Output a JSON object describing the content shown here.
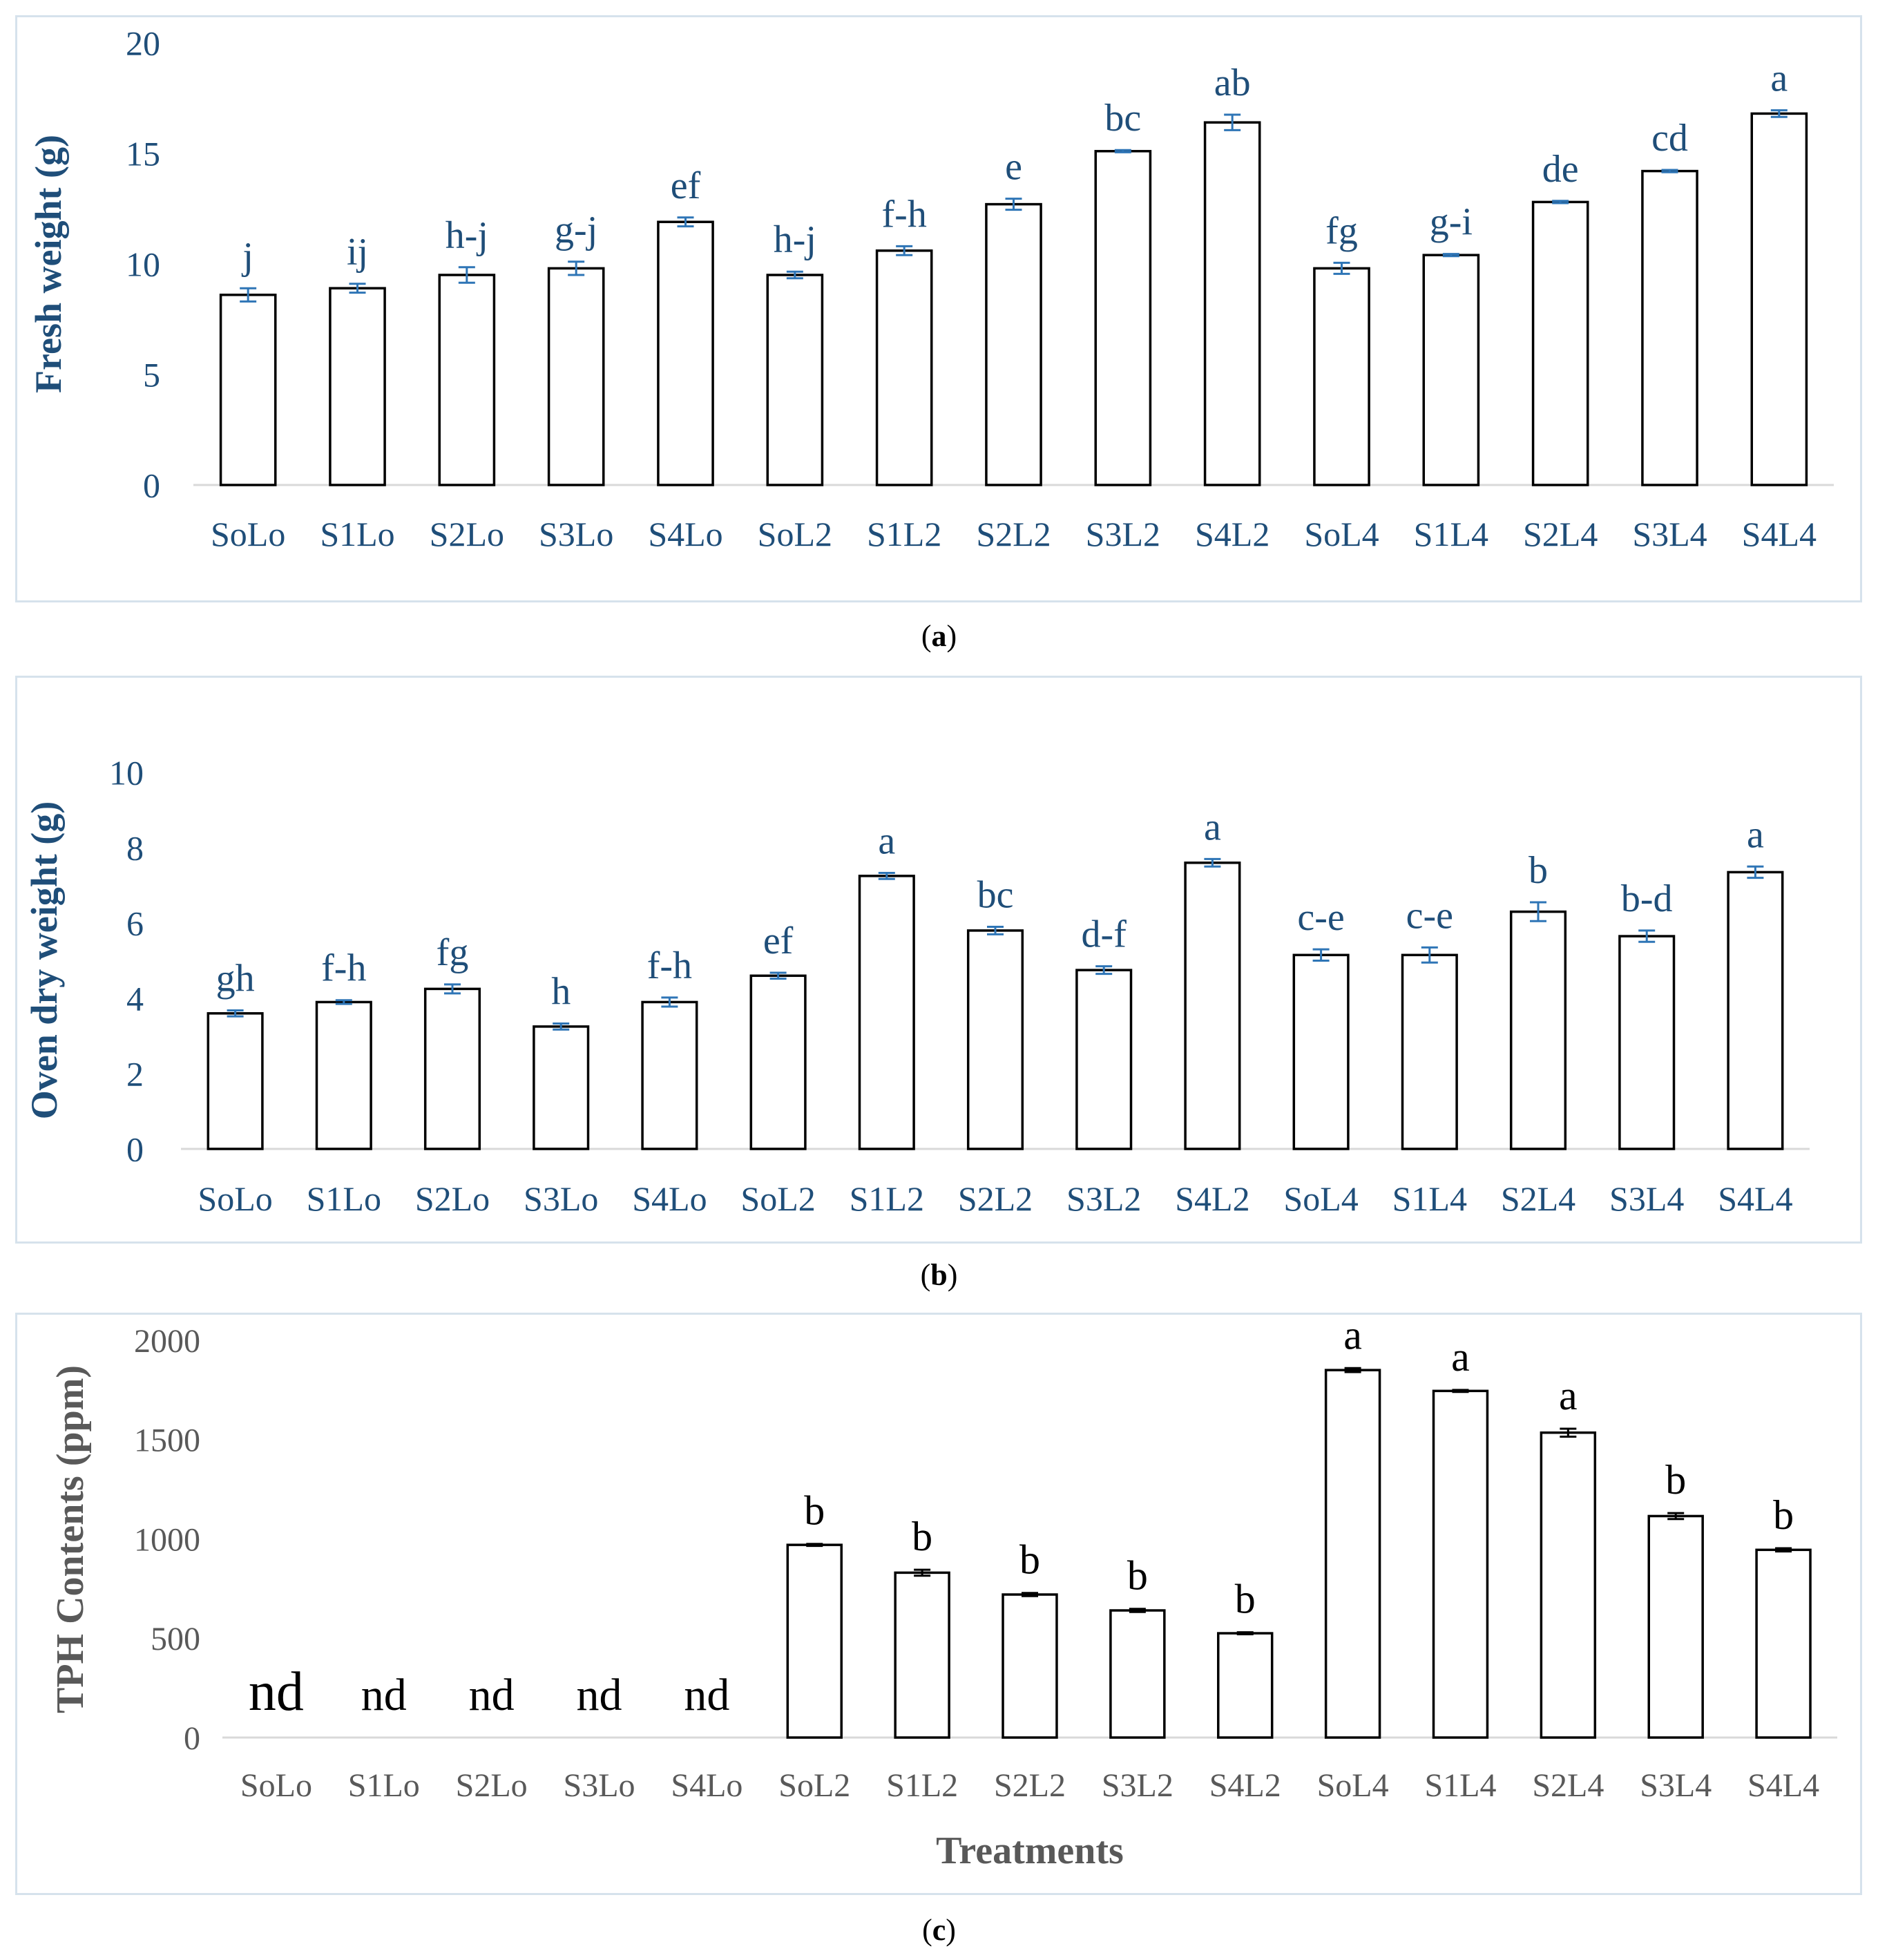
{
  "chart_data": [
    {
      "type": "bar",
      "panel": "a",
      "caption": "(a)",
      "categories": [
        "SoLo",
        "S1Lo",
        "S2Lo",
        "S3Lo",
        "S4Lo",
        "SoL2",
        "S1L2",
        "S2L2",
        "S3L2",
        "S4L2",
        "SoL4",
        "S1L4",
        "S2L4",
        "S3L4",
        "S4L4"
      ],
      "values": [
        8.6,
        8.9,
        9.5,
        9.8,
        11.9,
        9.5,
        10.6,
        12.7,
        15.1,
        16.4,
        9.8,
        10.4,
        12.8,
        14.2,
        16.8
      ],
      "errors": [
        0.3,
        0.2,
        0.35,
        0.3,
        0.2,
        0.15,
        0.2,
        0.25,
        0.05,
        0.35,
        0.25,
        0.05,
        0.05,
        0.05,
        0.15
      ],
      "letters": [
        "j",
        "ij",
        "h-j",
        "g-j",
        "ef",
        "h-j",
        "f-h",
        "e",
        "bc",
        "ab",
        "fg",
        "g-i",
        "de",
        "cd",
        "a"
      ],
      "xlabel": "",
      "ylabel": "Fresh weight (g)",
      "ylim": [
        0,
        20
      ],
      "yticks": [
        0,
        5,
        10,
        15,
        20
      ],
      "grid": false,
      "colors": {
        "axis_text": "#1f4e79",
        "letter_text": "#1f4e79",
        "error_bar": "#2e75b6",
        "bar_fill": "#ffffff",
        "bar_stroke": "#000000"
      }
    },
    {
      "type": "bar",
      "panel": "b",
      "caption": "(b)",
      "categories": [
        "SoLo",
        "S1Lo",
        "S2Lo",
        "S3Lo",
        "S4Lo",
        "SoL2",
        "S1L2",
        "S2L2",
        "S3L2",
        "S4L2",
        "SoL4",
        "S1L4",
        "S2L4",
        "S3L4",
        "S4L4"
      ],
      "values": [
        3.6,
        3.9,
        4.25,
        3.25,
        3.9,
        4.6,
        7.25,
        5.8,
        4.75,
        7.6,
        5.15,
        5.15,
        6.3,
        5.65,
        7.35
      ],
      "errors": [
        0.08,
        0.05,
        0.12,
        0.08,
        0.12,
        0.08,
        0.08,
        0.1,
        0.1,
        0.1,
        0.15,
        0.2,
        0.25,
        0.15,
        0.15
      ],
      "letters": [
        "gh",
        "f-h",
        "fg",
        "h",
        "f-h",
        "ef",
        "a",
        "bc",
        "d-f",
        "a",
        "c-e",
        "c-e",
        "b",
        "b-d",
        "a"
      ],
      "xlabel": "",
      "ylabel": "Oven dry weight (g)",
      "ylim": [
        0,
        10
      ],
      "yticks": [
        0,
        2,
        4,
        6,
        8,
        10
      ],
      "grid": false,
      "colors": {
        "axis_text": "#1f4e79",
        "letter_text": "#1f4e79",
        "error_bar": "#2e75b6",
        "bar_fill": "#ffffff",
        "bar_stroke": "#000000"
      }
    },
    {
      "type": "bar",
      "panel": "c",
      "caption": "(c)",
      "categories": [
        "SoLo",
        "S1Lo",
        "S2Lo",
        "S3Lo",
        "S4Lo",
        "SoL2",
        "S1L2",
        "S2L2",
        "S3L2",
        "S4L2",
        "SoL4",
        "S1L4",
        "S2L4",
        "S3L4",
        "S4L4"
      ],
      "values": [
        0,
        0,
        0,
        0,
        0,
        970,
        830,
        720,
        640,
        525,
        1850,
        1745,
        1535,
        1115,
        945
      ],
      "errors": [
        0,
        0,
        0,
        0,
        0,
        5,
        15,
        8,
        8,
        5,
        10,
        5,
        20,
        15,
        8
      ],
      "letters": [
        "nd",
        "nd",
        "nd",
        "nd",
        "nd",
        "b",
        "b",
        "b",
        "b",
        "b",
        "a",
        "a",
        "a",
        "b",
        "b"
      ],
      "xlabel": "Treatments",
      "ylabel": "TPH Contents (ppm)",
      "ylim": [
        0,
        2000
      ],
      "yticks": [
        0,
        500,
        1000,
        1500,
        2000
      ],
      "grid": false,
      "colors": {
        "axis_text": "#595959",
        "letter_text": "#000000",
        "error_bar": "#000000",
        "bar_fill": "#ffffff",
        "bar_stroke": "#000000"
      }
    }
  ]
}
